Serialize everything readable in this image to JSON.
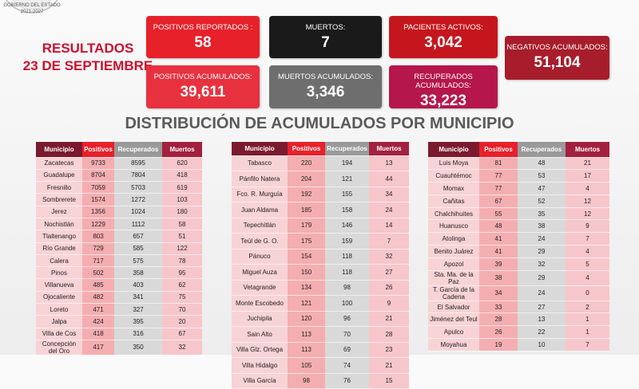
{
  "header": {
    "org": "GOBIERNO DEL ESTADO",
    "period": "2021-2027",
    "title": "RESULTADOS",
    "date": "23 DE SEPTIEMBRE"
  },
  "boxes": [
    {
      "label": "POSITIVOS REPORTADOS :",
      "value": "58"
    },
    {
      "label": "MUERTOS:",
      "value": "7"
    },
    {
      "label": "PACIENTES ACTIVOS:",
      "value": "3,042"
    },
    {
      "label": "NEGATIVOS ACUMULADOS:",
      "value": "51,104"
    },
    {
      "label": "POSITIVOS ACUMULADOS:",
      "value": "39,611"
    },
    {
      "label": "MUERTOS ACUMULADOS:",
      "value": "3,346"
    },
    {
      "label": "RECUPERADOS ACUMULADOS:",
      "value": "33,223"
    }
  ],
  "heading": "DISTRIBUCIÓN DE ACUMULADOS POR MUNICIPIO",
  "tables": [
    {
      "columns": [
        "Municipio",
        "Positivos",
        "Recuperados",
        "Muertos"
      ],
      "rows": [
        [
          "Zacatecas",
          9733,
          8595,
          620
        ],
        [
          "Guadalupe",
          8704,
          7804,
          418
        ],
        [
          "Fresnillo",
          7059,
          5703,
          619
        ],
        [
          "Sombrerete",
          1574,
          1272,
          103
        ],
        [
          "Jerez",
          1356,
          1024,
          180
        ],
        [
          "Nochistlán",
          1229,
          1112,
          58
        ],
        [
          "Tlaltenango",
          803,
          657,
          51
        ],
        [
          "Río Grande",
          729,
          585,
          122
        ],
        [
          "Calera",
          717,
          575,
          78
        ],
        [
          "Pinos",
          502,
          358,
          95
        ],
        [
          "Villanueva",
          485,
          403,
          62
        ],
        [
          "Ojocaliente",
          482,
          341,
          75
        ],
        [
          "Loreto",
          471,
          327,
          70
        ],
        [
          "Jalpa",
          424,
          395,
          20
        ],
        [
          "Villa de Cos",
          418,
          316,
          67
        ],
        [
          "Concepción del Oro",
          417,
          350,
          32
        ]
      ]
    },
    {
      "columns": [
        "Municipio",
        "Positivos",
        "Recuperados",
        "Muertos"
      ],
      "rows": [
        [
          "Tabasco",
          220,
          194,
          13
        ],
        [
          "Pánfilo Natera",
          204,
          121,
          44
        ],
        [
          "Fco. R. Murguía",
          192,
          155,
          34
        ],
        [
          "Juan Aldama",
          185,
          158,
          24
        ],
        [
          "Tepechitlán",
          179,
          146,
          14
        ],
        [
          "Teúl de G. O.",
          175,
          159,
          7
        ],
        [
          "Pánuco",
          154,
          118,
          32
        ],
        [
          "Miguel Auza",
          150,
          118,
          27
        ],
        [
          "Vetagrande",
          134,
          98,
          26
        ],
        [
          "Monte Escobedo",
          121,
          100,
          9
        ],
        [
          "Juchipila",
          120,
          96,
          21
        ],
        [
          "Sain Alto",
          113,
          70,
          28
        ],
        [
          "Villa Glz. Ortega",
          113,
          69,
          23
        ],
        [
          "Villa Hidalgo",
          105,
          74,
          21
        ],
        [
          "Villa García",
          98,
          76,
          15
        ]
      ]
    },
    {
      "columns": [
        "Municipio",
        "Positivos",
        "Recuperados",
        "Muertos"
      ],
      "rows": [
        [
          "Luis Moya",
          81,
          48,
          21
        ],
        [
          "Cuauhtémoc",
          77,
          53,
          17
        ],
        [
          "Momax",
          77,
          47,
          4
        ],
        [
          "Cañitas",
          67,
          52,
          12
        ],
        [
          "Chalchihuites",
          55,
          35,
          12
        ],
        [
          "Huanusco",
          48,
          38,
          9
        ],
        [
          "Atolinga",
          41,
          24,
          7
        ],
        [
          "Benito Juárez",
          41,
          29,
          4
        ],
        [
          "Apozol",
          39,
          32,
          5
        ],
        [
          "Sta. Ma. de la Paz",
          38,
          29,
          4
        ],
        [
          "T. García de la Cadena",
          34,
          24,
          0
        ],
        [
          "El Salvador",
          33,
          27,
          2
        ],
        [
          "Jiménez del Teul",
          28,
          13,
          1
        ],
        [
          "Apulco",
          26,
          22,
          1
        ],
        [
          "Moyahua",
          19,
          10,
          7
        ]
      ]
    }
  ]
}
